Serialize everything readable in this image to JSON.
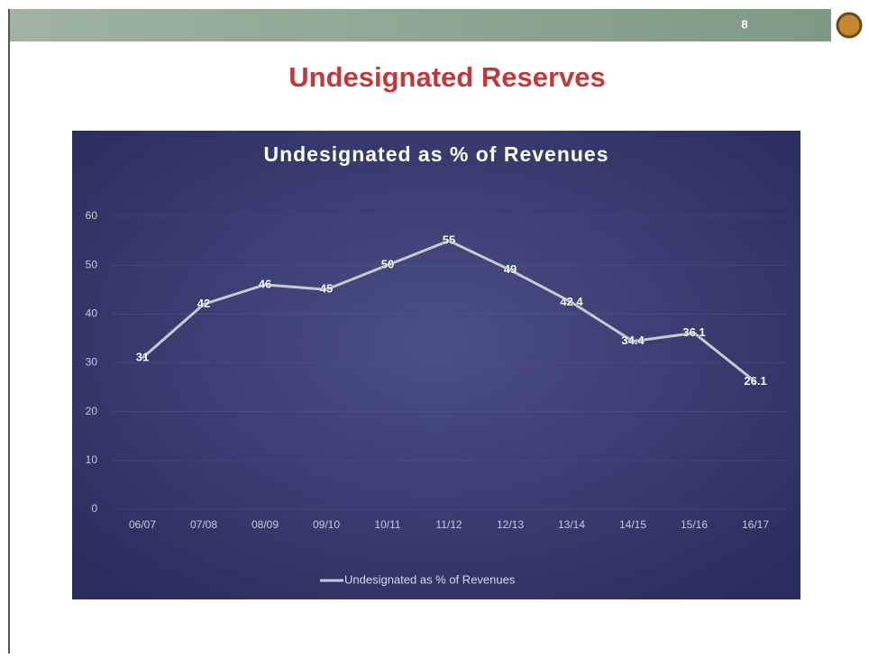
{
  "slide": {
    "title": "Undesignated Reserves",
    "page_number": "8"
  },
  "chart_data": {
    "type": "line",
    "title": "Undesignated as  % of Revenues",
    "categories": [
      "06/07",
      "07/08",
      "08/09",
      "09/10",
      "10/11",
      "11/12",
      "12/13",
      "13/14",
      "14/15",
      "15/16",
      "16/17"
    ],
    "series": [
      {
        "name": "Undesignated as  % of Revenues",
        "color": "#c9c9d2",
        "values": [
          31,
          42,
          46,
          45,
          50,
          55,
          49,
          42.4,
          34.4,
          36.1,
          26.1
        ]
      }
    ],
    "ylim": [
      0,
      60
    ],
    "yticks": [
      0,
      10,
      20,
      30,
      40,
      50,
      60
    ],
    "grid": true,
    "legend": "bottom"
  }
}
